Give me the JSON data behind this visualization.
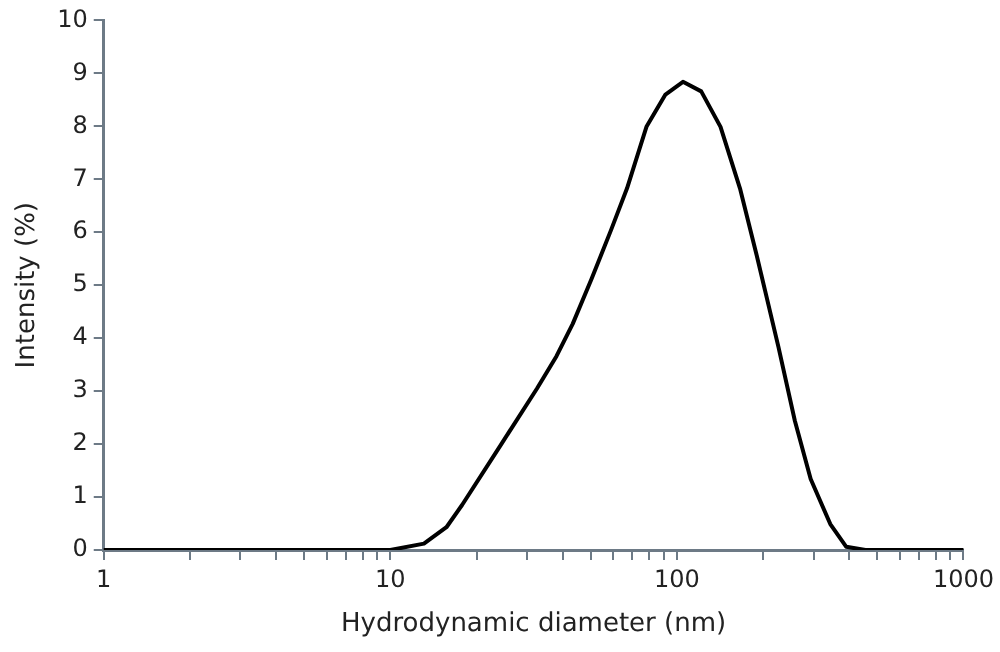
{
  "chart_data": {
    "type": "line",
    "xlabel": "Hydrodynamic diameter (nm)",
    "ylabel": "Intensity (%)",
    "x": [
      1,
      10,
      13.1,
      15.7,
      17.8,
      24.4,
      32.5,
      38,
      43.3,
      50.4,
      58.9,
      67,
      78.3,
      91.2,
      105,
      121.6,
      142,
      166,
      189,
      226,
      258,
      293,
      343,
      390,
      455,
      1000
    ],
    "series": [
      {
        "color": "#000000",
        "values": [
          0,
          0,
          0.12,
          0.43,
          0.85,
          2.0,
          3.05,
          3.66,
          4.27,
          5.12,
          6.04,
          6.83,
          7.99,
          8.6,
          8.84,
          8.66,
          7.99,
          6.83,
          5.61,
          3.84,
          2.44,
          1.34,
          0.49,
          0.06,
          0,
          0
        ]
      }
    ],
    "log": "x",
    "xlim": [
      1,
      1000
    ],
    "xticks": [
      1,
      {
        "value": 2,
        "label": null
      },
      {
        "value": 3,
        "label": null
      },
      {
        "value": 4,
        "label": null
      },
      {
        "value": 5,
        "label": null
      },
      {
        "value": 6,
        "label": null
      },
      {
        "value": 7,
        "label": null
      },
      {
        "value": 8,
        "label": null
      },
      {
        "value": 9,
        "label": null
      },
      10,
      {
        "value": 20,
        "label": null
      },
      {
        "value": 30,
        "label": null
      },
      {
        "value": 40,
        "label": null
      },
      {
        "value": 50,
        "label": null
      },
      {
        "value": 60,
        "label": null
      },
      {
        "value": 70,
        "label": null
      },
      {
        "value": 80,
        "label": null
      },
      {
        "value": 90,
        "label": null
      },
      100,
      {
        "value": 200,
        "label": null
      },
      {
        "value": 300,
        "label": null
      },
      {
        "value": 400,
        "label": null
      },
      {
        "value": 500,
        "label": null
      },
      {
        "value": 600,
        "label": null
      },
      {
        "value": 700,
        "label": null
      },
      {
        "value": 800,
        "label": null
      },
      {
        "value": 900,
        "label": null
      },
      1000
    ],
    "ylim": [
      0,
      10
    ],
    "yticks": [
      0,
      1,
      2,
      3,
      4,
      5,
      6,
      7,
      8,
      9,
      10
    ],
    "grid": false,
    "legend": false,
    "marker": "none",
    "line_style": "solid"
  }
}
